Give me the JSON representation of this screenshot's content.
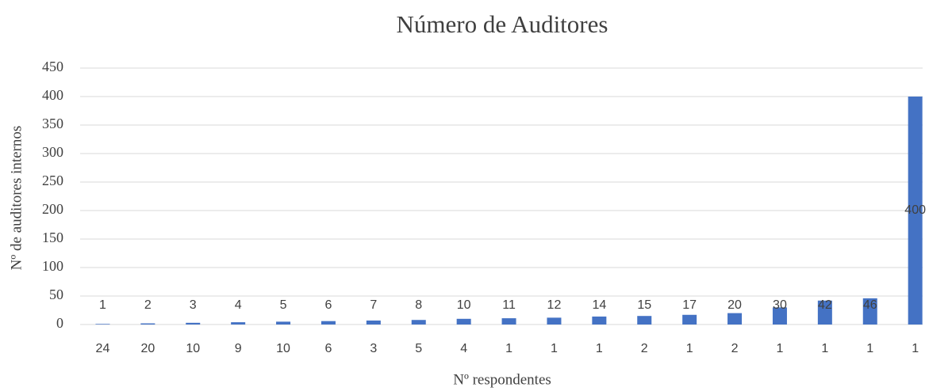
{
  "chart_data": {
    "type": "bar",
    "title": "Número de Auditores",
    "xlabel": "Nº respondentes",
    "ylabel": "Nº de auditores internos",
    "categories": [
      "24",
      "20",
      "10",
      "9",
      "10",
      "6",
      "3",
      "5",
      "4",
      "1",
      "1",
      "1",
      "2",
      "1",
      "2",
      "1",
      "1",
      "1",
      "1"
    ],
    "values": [
      1,
      2,
      3,
      4,
      5,
      6,
      7,
      8,
      10,
      11,
      12,
      14,
      15,
      17,
      20,
      30,
      42,
      46,
      400
    ],
    "color": "#4472c4",
    "ylim": [
      0,
      450
    ],
    "yticks": [
      0,
      50,
      100,
      150,
      200,
      250,
      300,
      350,
      400,
      450
    ],
    "grid": true
  }
}
